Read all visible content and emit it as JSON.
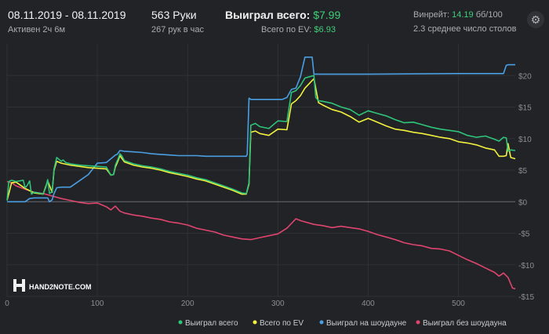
{
  "header": {
    "date_range": "08.11.2019 - 08.11.2019",
    "active": "Активен 2ч 6м",
    "hands": "563 Руки",
    "hands_per_hour": "267 рук в час",
    "won_total_label": "Выиграл всего:",
    "won_total_value": "$7.99",
    "ev_total_label": "Всего по EV:",
    "ev_total_value": "$6.93",
    "winrate_label": "Винрейт:",
    "winrate_value": "14.19",
    "winrate_suffix": "бб/100",
    "avg_tables": "2.3 среднее число столов",
    "settings_icon": "gear-icon"
  },
  "watermark": "HAND2NOTE.COM",
  "chart_data": {
    "type": "line",
    "xlim": [
      0,
      563
    ],
    "ylim": [
      -15,
      25
    ],
    "x_ticks": [
      0,
      100,
      200,
      300,
      400,
      500
    ],
    "y_ticks": [
      -15,
      -10,
      -5,
      0,
      5,
      10,
      15,
      20
    ],
    "y_tick_labels": [
      "-$15",
      "-$10",
      "-$5",
      "$0",
      "$5",
      "$10",
      "$15",
      "$20"
    ],
    "grid": true,
    "legend_position": "bottom-right",
    "series": [
      {
        "name": "Выиграл всего",
        "color": "#2ec47a",
        "x": [
          0,
          2,
          5,
          10,
          18,
          20,
          22,
          25,
          27,
          30,
          35,
          40,
          43,
          45,
          47,
          50,
          52,
          55,
          60,
          62,
          65,
          70,
          75,
          80,
          90,
          100,
          110,
          115,
          118,
          120,
          123,
          125,
          127,
          130,
          140,
          150,
          160,
          170,
          180,
          190,
          200,
          210,
          220,
          230,
          240,
          250,
          260,
          265,
          268,
          270,
          275,
          280,
          290,
          300,
          310,
          315,
          320,
          325,
          330,
          340,
          342,
          345,
          350,
          360,
          370,
          380,
          390,
          400,
          410,
          420,
          430,
          440,
          450,
          460,
          470,
          480,
          490,
          500,
          510,
          520,
          530,
          540,
          545,
          550,
          553,
          555,
          558,
          563
        ],
        "y": [
          0.2,
          3.2,
          3.4,
          3.2,
          3.4,
          2.2,
          2.5,
          3.3,
          1.2,
          1.5,
          1.4,
          1.2,
          2.3,
          3.5,
          1.3,
          1.6,
          5.2,
          7.0,
          6.4,
          6.6,
          6.2,
          6.0,
          5.9,
          5.8,
          5.7,
          5.6,
          5.5,
          4.2,
          4.3,
          5.8,
          6.8,
          7.6,
          7.3,
          6.5,
          6.0,
          5.7,
          5.5,
          5.2,
          4.8,
          4.5,
          4.2,
          3.8,
          3.5,
          3.0,
          2.5,
          2.0,
          1.4,
          1.3,
          3.0,
          12.1,
          12.4,
          11.9,
          11.6,
          12.8,
          12.7,
          17.3,
          17.6,
          18.4,
          19.6,
          20.0,
          16.5,
          16.0,
          15.9,
          15.6,
          15.0,
          14.6,
          13.7,
          14.4,
          14.0,
          13.6,
          13.0,
          12.5,
          12.6,
          12.2,
          11.8,
          11.5,
          11.3,
          11.1,
          10.5,
          10.2,
          10.4,
          9.9,
          9.6,
          10.2,
          10.1,
          8.0,
          8.2,
          8.1
        ]
      },
      {
        "name": "Всего по EV",
        "color": "#f1f13e",
        "x": [
          0,
          5,
          10,
          20,
          30,
          40,
          45,
          50,
          52,
          55,
          60,
          70,
          80,
          90,
          100,
          110,
          115,
          118,
          120,
          123,
          125,
          130,
          140,
          150,
          160,
          170,
          180,
          190,
          200,
          210,
          220,
          230,
          240,
          250,
          260,
          265,
          268,
          270,
          275,
          280,
          290,
          300,
          310,
          315,
          320,
          325,
          330,
          340,
          345,
          350,
          360,
          370,
          380,
          390,
          400,
          410,
          420,
          430,
          440,
          450,
          460,
          470,
          480,
          490,
          500,
          510,
          520,
          530,
          540,
          545,
          550,
          553,
          555,
          558,
          563
        ],
        "y": [
          0.2,
          3.0,
          3.1,
          2.1,
          1.4,
          1.2,
          3.3,
          1.5,
          5.0,
          6.4,
          6.1,
          5.8,
          5.6,
          5.4,
          5.3,
          5.2,
          4.2,
          4.3,
          5.5,
          6.5,
          7.3,
          6.3,
          5.8,
          5.5,
          5.3,
          5.0,
          4.6,
          4.3,
          4.0,
          3.6,
          3.3,
          2.8,
          2.3,
          1.8,
          1.2,
          1.2,
          2.8,
          11.0,
          11.2,
          10.8,
          10.5,
          11.5,
          11.4,
          15.5,
          16.0,
          16.8,
          18.0,
          19.5,
          15.7,
          15.3,
          14.6,
          14.2,
          13.5,
          12.6,
          13.2,
          12.6,
          12.0,
          11.5,
          11.3,
          11.0,
          10.8,
          10.5,
          10.2,
          10.0,
          9.5,
          9.3,
          9.0,
          8.5,
          8.2,
          7.2,
          7.2,
          7.3,
          9.2,
          7.0,
          6.8
        ]
      },
      {
        "name": "Выиграл на шоудауне",
        "color": "#4a9fe3",
        "x": [
          0,
          5,
          10,
          20,
          25,
          30,
          35,
          45,
          47,
          50,
          52,
          55,
          60,
          70,
          80,
          90,
          100,
          110,
          120,
          122,
          125,
          130,
          140,
          150,
          160,
          170,
          180,
          190,
          200,
          210,
          220,
          230,
          240,
          250,
          260,
          265,
          266,
          268,
          270,
          280,
          290,
          300,
          305,
          310,
          315,
          320,
          325,
          330,
          338,
          340,
          342,
          350,
          400,
          500,
          550,
          553,
          555,
          563
        ],
        "y": [
          0,
          0,
          0,
          0,
          0.5,
          0.6,
          0.6,
          0.6,
          0,
          0.3,
          1.3,
          2.2,
          2.3,
          2.3,
          3.3,
          4.3,
          6.1,
          6.2,
          7.4,
          7.5,
          8.1,
          8.0,
          7.9,
          7.8,
          7.6,
          7.5,
          7.4,
          7.3,
          7.3,
          7.3,
          7.2,
          7.2,
          7.2,
          7.2,
          7.2,
          7.2,
          7.5,
          16.4,
          16.2,
          16.2,
          16.2,
          16.2,
          16.2,
          16.5,
          17.8,
          18.0,
          19.8,
          22.9,
          22.9,
          20.2,
          20.2,
          20.2,
          20.2,
          20.3,
          20.3,
          21.6,
          21.7,
          21.7
        ]
      },
      {
        "name": "Выиграл без шоудауна",
        "color": "#e0456e",
        "x": [
          0,
          5,
          10,
          20,
          30,
          40,
          50,
          60,
          70,
          80,
          90,
          100,
          110,
          115,
          120,
          125,
          130,
          140,
          150,
          160,
          170,
          180,
          190,
          200,
          210,
          220,
          230,
          240,
          250,
          260,
          270,
          280,
          290,
          300,
          310,
          320,
          325,
          330,
          340,
          350,
          360,
          370,
          380,
          390,
          400,
          410,
          420,
          430,
          440,
          450,
          460,
          470,
          480,
          490,
          500,
          510,
          520,
          530,
          540,
          545,
          550,
          555,
          560,
          563
        ],
        "y": [
          3.2,
          3.0,
          2.5,
          2.0,
          1.5,
          1.3,
          0.9,
          0.5,
          0.2,
          -0.1,
          -0.3,
          -0.2,
          -0.8,
          -1.3,
          -0.7,
          -1.5,
          -1.8,
          -2.1,
          -2.3,
          -2.6,
          -2.8,
          -3.2,
          -3.4,
          -3.7,
          -4.2,
          -4.5,
          -4.8,
          -5.3,
          -5.6,
          -5.9,
          -6.0,
          -5.7,
          -5.4,
          -5.1,
          -4.2,
          -2.7,
          -3.0,
          -3.2,
          -3.6,
          -3.8,
          -4.1,
          -3.9,
          -4.1,
          -4.3,
          -4.7,
          -5.2,
          -5.6,
          -6.0,
          -6.5,
          -6.8,
          -7.0,
          -7.4,
          -7.5,
          -7.8,
          -8.5,
          -9.2,
          -9.8,
          -10.5,
          -11.2,
          -11.8,
          -11.3,
          -12.0,
          -13.7,
          -13.8
        ]
      }
    ]
  }
}
